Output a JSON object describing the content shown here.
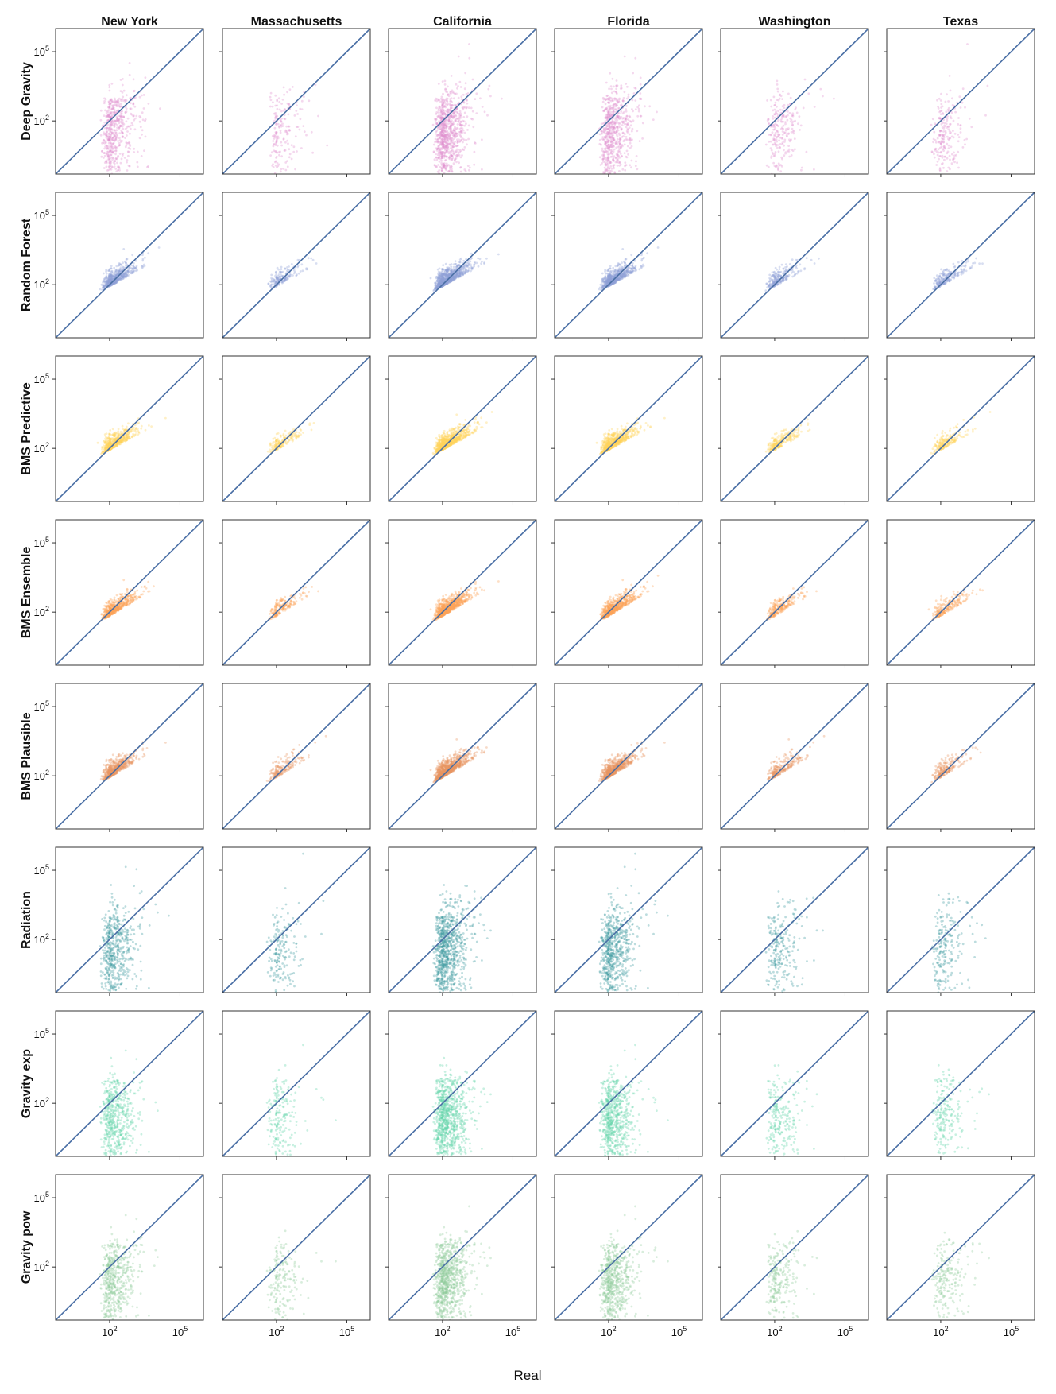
{
  "chart_data": {
    "type": "scatter",
    "title": "",
    "xlabel": "Real",
    "ylabel": "",
    "x_scale": "log",
    "y_scale": "log",
    "xlim": [
      0.5,
      1000000
    ],
    "ylim": [
      0.5,
      1000000
    ],
    "x_ticks": [
      {
        "base": "10",
        "exp": "2"
      },
      {
        "base": "10",
        "exp": "5"
      }
    ],
    "y_ticks": [
      {
        "base": "10",
        "exp": "2"
      },
      {
        "base": "10",
        "exp": "5"
      }
    ],
    "grid": false,
    "reference_line": "y = x",
    "reference_line_color": "#4a6fa5",
    "columns": [
      "New York",
      "Massachusetts",
      "California",
      "Florida",
      "Washington",
      "Texas"
    ],
    "rows": [
      {
        "name": "Deep Gravity",
        "color": "#e08fcf"
      },
      {
        "name": "Random Forest",
        "color": "#8ea1d6"
      },
      {
        "name": "BMS Predictive",
        "color": "#ffd45c"
      },
      {
        "name": "BMS Ensemble",
        "color": "#fba45a"
      },
      {
        "name": "BMS Plausible",
        "color": "#e89461"
      },
      {
        "name": "Radiation",
        "color": "#3f9ca0"
      },
      {
        "name": "Gravity exp",
        "color": "#62d3a8"
      },
      {
        "name": "Gravity pow",
        "color": "#8fcc9b"
      }
    ],
    "column_density": [
      1.0,
      0.35,
      1.6,
      1.2,
      0.45,
      0.4
    ],
    "row_behavior": [
      {
        "model": "Deep Gravity",
        "y_floor_log": -0.3,
        "slope": 0.85,
        "spread": 0.9,
        "vertical_band": true
      },
      {
        "model": "Random Forest",
        "y_floor_log": 1.9,
        "slope": 0.55,
        "spread": 0.3,
        "vertical_band": false
      },
      {
        "model": "BMS Predictive",
        "y_floor_log": 1.9,
        "slope": 0.55,
        "spread": 0.28,
        "vertical_band": false
      },
      {
        "model": "BMS Ensemble",
        "y_floor_log": 1.8,
        "slope": 0.6,
        "spread": 0.28,
        "vertical_band": false
      },
      {
        "model": "BMS Plausible",
        "y_floor_log": 1.9,
        "slope": 0.6,
        "spread": 0.3,
        "vertical_band": false
      },
      {
        "model": "Radiation",
        "y_floor_log": -0.3,
        "slope": 0.9,
        "spread": 1.0,
        "vertical_band": true
      },
      {
        "model": "Gravity exp",
        "y_floor_log": -0.3,
        "slope": 0.2,
        "spread": 0.9,
        "vertical_band": true
      },
      {
        "model": "Gravity pow",
        "y_floor_log": -0.3,
        "slope": 0.55,
        "spread": 0.8,
        "vertical_band": true
      }
    ]
  }
}
